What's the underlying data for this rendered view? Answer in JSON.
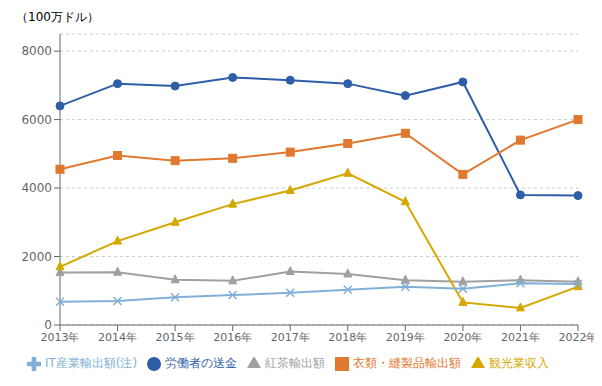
{
  "chart_data": {
    "type": "line",
    "ylabel": "（100万ドル）",
    "categories": [
      "2013年",
      "2014年",
      "2015年",
      "2016年",
      "2017年",
      "2018年",
      "2019年",
      "2020年",
      "2021年",
      "2022年"
    ],
    "series": [
      {
        "name": "労働者の送金",
        "color": "#2E5EA8",
        "marker": "circle",
        "values": [
          6400,
          7050,
          6980,
          7230,
          7150,
          7050,
          6700,
          7100,
          3800,
          3780
        ]
      },
      {
        "name": "衣類・縫製品輸出額",
        "color": "#E07830",
        "marker": "square",
        "values": [
          4550,
          4950,
          4800,
          4870,
          5050,
          5300,
          5600,
          4400,
          5400,
          6000
        ]
      },
      {
        "name": "紅茶輸出額",
        "color": "#A0A0A0",
        "marker": "triangle",
        "values": [
          1530,
          1540,
          1320,
          1290,
          1560,
          1490,
          1310,
          1260,
          1310,
          1260
        ]
      },
      {
        "name": "観光業収入",
        "color": "#D4A800",
        "marker": "triangle",
        "values": [
          1700,
          2450,
          3000,
          3530,
          3930,
          4430,
          3600,
          660,
          500,
          1120
        ]
      },
      {
        "name": "IT産業輸出額(注)",
        "color": "#80B0D8",
        "marker": "x",
        "values": [
          680,
          700,
          810,
          875,
          940,
          1030,
          1120,
          1060,
          1220,
          1200
        ]
      }
    ],
    "ylim": [
      0,
      8500
    ],
    "yticks": [
      0,
      2000,
      4000,
      6000,
      8000
    ],
    "grid": true,
    "legend": "bottom"
  }
}
